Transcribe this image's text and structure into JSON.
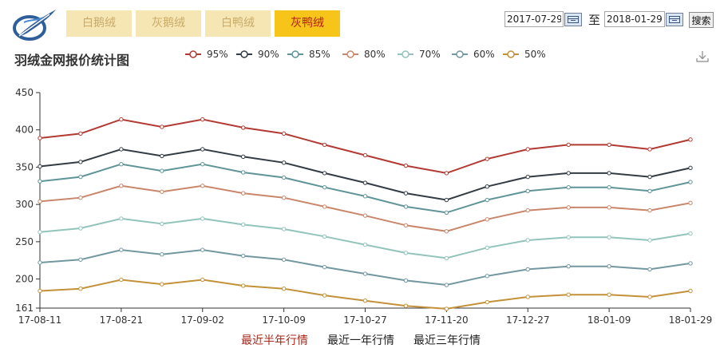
{
  "header": {
    "tabs": [
      {
        "label": "白鹅绒",
        "active": false
      },
      {
        "label": "灰鹅绒",
        "active": false
      },
      {
        "label": "白鸭绒",
        "active": false
      },
      {
        "label": "灰鸭绒",
        "active": true
      }
    ],
    "date_from": "2017-07-29",
    "to_label": "至",
    "date_to": "2018-01-29",
    "search_label": "搜索"
  },
  "icons": {
    "logo": "feather-logo-icon",
    "calendar": "calendar-icon",
    "download": "download-icon"
  },
  "colors": {
    "active_tab_bg": "#f7c41a",
    "active_tab_text": "#b21e12",
    "inactive_tab_bg": "#f6e6b4",
    "inactive_tab_text": "#c9aa68",
    "active_range": "#a7291c"
  },
  "chart_data": {
    "type": "line",
    "title": "羽绒金网报价统计图",
    "categories": [
      "17-08-11",
      "17-08-21",
      "17-09-02",
      "17-10-09",
      "17-10-27",
      "17-11-20",
      "17-12-27",
      "18-01-09",
      "18-01-29"
    ],
    "x": [
      "17-08-11",
      "17-08-16",
      "17-08-21",
      "17-08-27",
      "17-09-02",
      "17-09-16",
      "17-10-09",
      "17-10-18",
      "17-10-27",
      "17-11-08",
      "17-11-20",
      "17-12-08",
      "17-12-27",
      "17-12-31",
      "18-01-09",
      "18-01-19",
      "18-01-29"
    ],
    "ylim": [
      161,
      450
    ],
    "yticks": [
      161,
      200,
      250,
      300,
      350,
      400,
      450
    ],
    "grid": false,
    "legend_position": "top",
    "series": [
      {
        "name": "95%",
        "color": "#b23a33",
        "values": [
          389,
          395,
          414,
          404,
          414,
          403,
          395,
          380,
          366,
          352,
          342,
          361,
          374,
          380,
          380,
          374,
          387
        ]
      },
      {
        "name": "90%",
        "color": "#333c44",
        "values": [
          351,
          357,
          374,
          365,
          374,
          364,
          356,
          342,
          329,
          315,
          306,
          324,
          337,
          342,
          342,
          337,
          349
        ]
      },
      {
        "name": "85%",
        "color": "#5f9498",
        "values": [
          331,
          337,
          354,
          345,
          354,
          343,
          336,
          323,
          311,
          297,
          289,
          306,
          318,
          323,
          323,
          318,
          330
        ]
      },
      {
        "name": "80%",
        "color": "#c9866b",
        "values": [
          304,
          309,
          325,
          317,
          325,
          315,
          309,
          297,
          285,
          272,
          264,
          280,
          292,
          296,
          296,
          292,
          302
        ]
      },
      {
        "name": "70%",
        "color": "#93c4bb",
        "values": [
          263,
          268,
          281,
          274,
          281,
          273,
          267,
          257,
          246,
          235,
          228,
          242,
          252,
          256,
          256,
          252,
          261
        ]
      },
      {
        "name": "60%",
        "color": "#7397a0",
        "values": [
          222,
          226,
          239,
          233,
          239,
          231,
          226,
          216,
          207,
          198,
          192,
          204,
          213,
          217,
          217,
          213,
          221
        ]
      },
      {
        "name": "50%",
        "color": "#c39139",
        "values": [
          184,
          187,
          199,
          193,
          199,
          191,
          187,
          178,
          171,
          164,
          160,
          169,
          176,
          179,
          179,
          176,
          184
        ]
      }
    ]
  },
  "range_links": [
    {
      "label": "最近半年行情",
      "active": true
    },
    {
      "label": "最近一年行情",
      "active": false
    },
    {
      "label": "最近三年行情",
      "active": false
    }
  ]
}
